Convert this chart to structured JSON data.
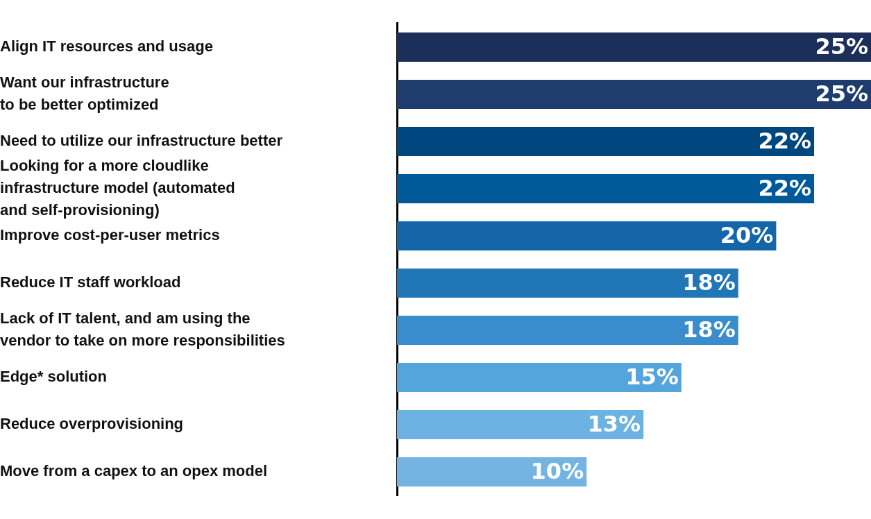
{
  "chart_data": {
    "type": "bar",
    "orientation": "horizontal",
    "categories": [
      "Align IT resources and usage",
      "Want our infrastructure\nto be better optimized",
      "Need to utilize our infrastructure better",
      "Looking for a more cloudlike\ninfrastructure model (automated\nand self-provisioning)",
      "Improve cost-per-user metrics",
      "Reduce IT staff workload",
      "Lack of IT talent, and am using the\nvendor to take on more responsibilities",
      "Edge* solution",
      "Reduce overprovisioning",
      "Move from a capex to an opex model"
    ],
    "values": [
      25,
      25,
      22,
      22,
      20,
      18,
      18,
      15,
      13,
      10
    ],
    "value_labels": [
      "25%",
      "25%",
      "22%",
      "22%",
      "20%",
      "18%",
      "18%",
      "15%",
      "13%",
      "10%"
    ],
    "colors": [
      "#1c2f5a",
      "#1e3d6e",
      "#00477f",
      "#005a99",
      "#1466a8",
      "#2176b8",
      "#3a8dcc",
      "#55a5dd",
      "#6cb2e2",
      "#74b4e2"
    ],
    "xlim": [
      0,
      25
    ],
    "grid": false,
    "legend": false,
    "tick_labels": "y"
  }
}
